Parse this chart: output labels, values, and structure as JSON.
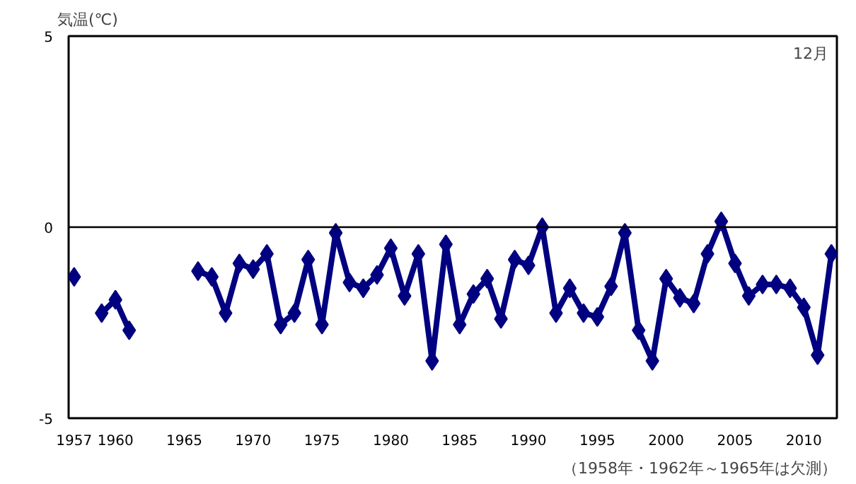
{
  "chart_data": {
    "type": "line",
    "ylabel": "気温(℃)",
    "x": [
      1957,
      1958,
      1959,
      1960,
      1961,
      1962,
      1963,
      1964,
      1965,
      1966,
      1967,
      1968,
      1969,
      1970,
      1971,
      1972,
      1973,
      1974,
      1975,
      1976,
      1977,
      1978,
      1979,
      1980,
      1981,
      1982,
      1983,
      1984,
      1985,
      1986,
      1987,
      1988,
      1989,
      1990,
      1991,
      1992,
      1993,
      1994,
      1995,
      1996,
      1997,
      1998,
      1999,
      2000,
      2001,
      2002,
      2003,
      2004,
      2005,
      2006,
      2007,
      2008,
      2009,
      2010,
      2011,
      2012
    ],
    "series": [
      {
        "color": "#000080",
        "values": [
          -1.3,
          null,
          -2.25,
          -1.9,
          -2.7,
          null,
          null,
          null,
          null,
          -1.15,
          -1.3,
          -2.25,
          -0.95,
          -1.1,
          -0.7,
          -2.55,
          -2.25,
          -0.85,
          -2.55,
          -0.15,
          -1.45,
          -1.6,
          -1.25,
          -0.55,
          -1.8,
          -0.7,
          -3.5,
          -0.45,
          -2.55,
          -1.75,
          -1.35,
          -2.4,
          -0.85,
          -1.0,
          0.0,
          -2.25,
          -1.6,
          -2.25,
          -2.35,
          -1.55,
          -0.15,
          -2.7,
          -3.5,
          -1.35,
          -1.85,
          -2.0,
          -0.7,
          0.15,
          -0.95,
          -1.8,
          -1.5,
          -1.5,
          -1.6,
          -2.1,
          -3.35,
          -0.7
        ]
      }
    ],
    "xlim": [
      1956.6,
      2012.4
    ],
    "xticks": [
      1957,
      1960,
      1965,
      1970,
      1975,
      1980,
      1985,
      1990,
      1995,
      2000,
      2005,
      2010
    ],
    "ylim": [
      -5,
      5
    ],
    "yticks": [
      -5,
      0,
      5
    ],
    "ref_lines": [
      {
        "axis": "y",
        "value": 0,
        "color": "#000000"
      }
    ],
    "annotations": [
      "12月",
      "（1958年・1962年～1965年は欠測）"
    ],
    "marker": "diamond",
    "line_style": "solid",
    "grid": false
  }
}
